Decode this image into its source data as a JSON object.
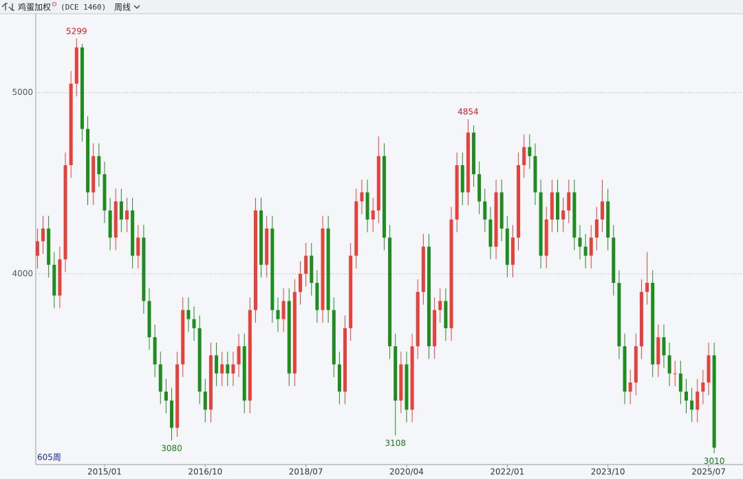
{
  "header": {
    "symbol": "鸡蛋加权",
    "code": "(DCE 1460)",
    "period": "周线"
  },
  "chart_data": {
    "type": "candlestick",
    "bar_count_label": "605周",
    "up_color": "#e8403a",
    "down_color": "#1e8c1e",
    "ylim": [
      2947,
      5436
    ],
    "yticks": [
      4000,
      5000
    ],
    "grid": true,
    "categories": [
      null,
      null,
      null,
      null,
      null,
      null,
      null,
      null,
      null,
      null,
      null,
      null,
      "2015/01",
      null,
      null,
      null,
      null,
      null,
      null,
      null,
      null,
      null,
      null,
      null,
      null,
      null,
      null,
      null,
      null,
      null,
      "2016/10",
      null,
      null,
      null,
      null,
      null,
      null,
      null,
      null,
      null,
      null,
      null,
      null,
      null,
      null,
      null,
      null,
      null,
      "2018/07",
      null,
      null,
      null,
      null,
      null,
      null,
      null,
      null,
      null,
      null,
      null,
      null,
      null,
      null,
      null,
      null,
      null,
      "2020/04",
      null,
      null,
      null,
      null,
      null,
      null,
      null,
      null,
      null,
      null,
      null,
      null,
      null,
      null,
      null,
      null,
      null,
      "2022/01",
      null,
      null,
      null,
      null,
      null,
      null,
      null,
      null,
      null,
      null,
      null,
      null,
      null,
      null,
      null,
      null,
      null,
      "2023/10",
      null,
      null,
      null,
      null,
      null,
      null,
      null,
      null,
      null,
      null,
      null,
      null,
      null,
      null,
      null,
      null,
      null,
      "2025/07",
      null
    ],
    "open": [
      4100,
      4180,
      4250,
      4050,
      3880,
      4080,
      4600,
      5050,
      5250,
      4800,
      4450,
      4650,
      4550,
      4350,
      4200,
      4400,
      4300,
      4350,
      4100,
      4200,
      3850,
      3650,
      3500,
      3350,
      3300,
      3150,
      3500,
      3800,
      3750,
      3700,
      3350,
      3250,
      3550,
      3450,
      3500,
      3450,
      3500,
      3600,
      3300,
      3800,
      4350,
      4050,
      4250,
      3800,
      3750,
      3850,
      3450,
      3900,
      4000,
      4100,
      3950,
      3800,
      4250,
      3800,
      3500,
      3350,
      3700,
      4100,
      4400,
      4450,
      4300,
      4350,
      4650,
      4200,
      3600,
      3300,
      3500,
      3250,
      3600,
      3900,
      4150,
      3600,
      3800,
      3850,
      3700,
      4300,
      4600,
      4450,
      4780,
      4550,
      4400,
      4300,
      4150,
      4450,
      4250,
      4050,
      4200,
      4600,
      4700,
      4650,
      4450,
      4100,
      4300,
      4450,
      4300,
      4350,
      4450,
      4200,
      4150,
      4100,
      4200,
      4300,
      4400,
      4200,
      3950,
      3600,
      3350,
      3400,
      3600,
      3900,
      3950,
      3500,
      3650,
      3550,
      3450,
      3450,
      3350,
      3300,
      3250,
      3350,
      3400,
      3550
    ],
    "high": [
      4250,
      4320,
      4320,
      4120,
      4150,
      4670,
      5120,
      5299,
      5270,
      4870,
      4720,
      4720,
      4620,
      4420,
      4470,
      4470,
      4420,
      4420,
      4270,
      4270,
      3920,
      3720,
      3570,
      3420,
      3370,
      3570,
      3870,
      3870,
      3820,
      3770,
      3420,
      3620,
      3620,
      3570,
      3570,
      3570,
      3670,
      3670,
      3870,
      4420,
      4420,
      4320,
      4320,
      3870,
      3920,
      3920,
      3970,
      4070,
      4170,
      4170,
      4020,
      4320,
      4320,
      3870,
      3570,
      3770,
      4170,
      4470,
      4520,
      4520,
      4420,
      4760,
      4720,
      4270,
      3670,
      3570,
      3570,
      3670,
      3970,
      4220,
      4220,
      3870,
      3920,
      3920,
      4370,
      4670,
      4670,
      4854,
      4820,
      4620,
      4470,
      4370,
      4520,
      4520,
      4320,
      4270,
      4670,
      4770,
      4770,
      4720,
      4520,
      4370,
      4520,
      4520,
      4420,
      4520,
      4520,
      4270,
      4220,
      4270,
      4370,
      4520,
      4470,
      4270,
      4020,
      3670,
      3470,
      3670,
      3970,
      4120,
      4020,
      3720,
      3720,
      3620,
      3520,
      3520,
      3420,
      3370,
      3420,
      3470,
      3620,
      3620
    ],
    "low": [
      4030,
      4110,
      3980,
      3810,
      3810,
      4010,
      4530,
      4980,
      4730,
      4380,
      4380,
      4480,
      4280,
      4130,
      4130,
      4230,
      4230,
      4030,
      4030,
      3780,
      3580,
      3430,
      3280,
      3230,
      3080,
      3100,
      3430,
      3680,
      3630,
      3280,
      3180,
      3180,
      3380,
      3380,
      3380,
      3380,
      3430,
      3230,
      3230,
      3730,
      3980,
      3980,
      3730,
      3680,
      3680,
      3380,
      3380,
      3830,
      3930,
      3880,
      3730,
      3730,
      3730,
      3430,
      3280,
      3280,
      3630,
      4030,
      4330,
      4230,
      4230,
      4280,
      4130,
      3530,
      3108,
      3230,
      3180,
      3180,
      3530,
      3830,
      3530,
      3530,
      3730,
      3630,
      3630,
      4230,
      4380,
      4380,
      4480,
      4330,
      4230,
      4080,
      4080,
      4180,
      3980,
      3980,
      4130,
      4530,
      4580,
      4380,
      4030,
      4030,
      4230,
      4230,
      4230,
      4280,
      4130,
      4080,
      4030,
      4030,
      4130,
      4230,
      4130,
      3880,
      3530,
      3280,
      3280,
      3330,
      3530,
      3830,
      3430,
      3430,
      3480,
      3380,
      3380,
      3280,
      3230,
      3180,
      3180,
      3280,
      3330,
      3010
    ],
    "close": [
      4180,
      4250,
      4050,
      3880,
      4080,
      4600,
      5050,
      5250,
      4800,
      4450,
      4650,
      4550,
      4350,
      4200,
      4400,
      4300,
      4350,
      4100,
      4200,
      3850,
      3650,
      3500,
      3350,
      3300,
      3150,
      3500,
      3800,
      3750,
      3700,
      3350,
      3250,
      3550,
      3450,
      3500,
      3450,
      3500,
      3600,
      3300,
      3800,
      4350,
      4050,
      4250,
      3800,
      3750,
      3850,
      3450,
      3900,
      4000,
      4100,
      3950,
      3800,
      4250,
      3800,
      3500,
      3350,
      3700,
      4100,
      4400,
      4450,
      4300,
      4350,
      4650,
      4200,
      3600,
      3300,
      3500,
      3250,
      3600,
      3900,
      4150,
      3600,
      3800,
      3850,
      3700,
      4300,
      4600,
      4450,
      4780,
      4550,
      4400,
      4300,
      4150,
      4450,
      4250,
      4050,
      4200,
      4600,
      4700,
      4650,
      4450,
      4100,
      4300,
      4450,
      4300,
      4350,
      4450,
      4200,
      4150,
      4100,
      4200,
      4300,
      4400,
      4200,
      3950,
      3600,
      3350,
      3400,
      3600,
      3900,
      3950,
      3500,
      3650,
      3550,
      3450,
      3450,
      3350,
      3300,
      3250,
      3350,
      3400,
      3550,
      3040
    ],
    "labeled_highs": [
      7,
      77
    ],
    "labeled_lows": [
      24,
      64,
      121
    ]
  }
}
